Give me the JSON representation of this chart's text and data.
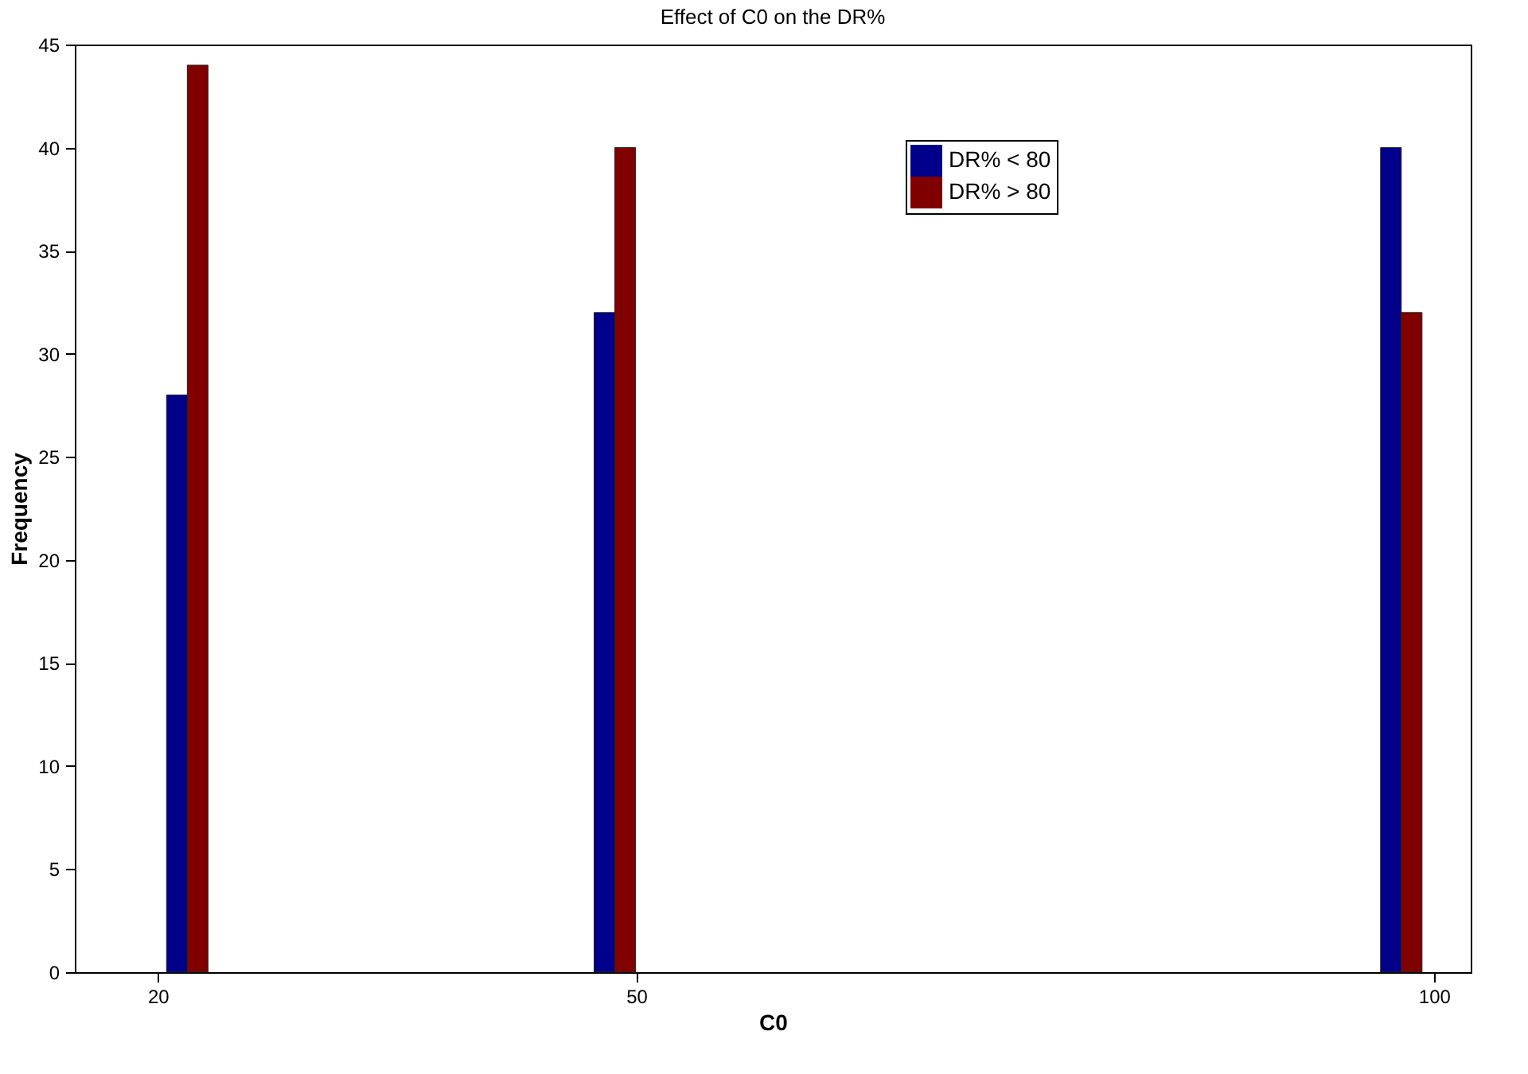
{
  "chart_data": {
    "type": "bar",
    "title": "Effect of C0 on the DR%",
    "xlabel": "C0",
    "ylabel": "Frequency",
    "series": [
      {
        "name": "DR% < 80",
        "color": "#00008b",
        "x": [
          21.2,
          48.0,
          97.3
        ],
        "values": [
          28,
          32,
          40
        ]
      },
      {
        "name": "DR% > 80",
        "color": "#800000",
        "x": [
          22.5,
          49.3,
          98.6
        ],
        "values": [
          44,
          40,
          32
        ]
      }
    ],
    "xlim": [
      14.8,
      102.3
    ],
    "xticks": [
      20,
      50,
      100
    ],
    "ylim": [
      0,
      45
    ],
    "yticks": [
      0,
      5,
      10,
      15,
      20,
      25,
      30,
      35,
      40,
      45
    ],
    "grid": false,
    "legend": "top right"
  }
}
